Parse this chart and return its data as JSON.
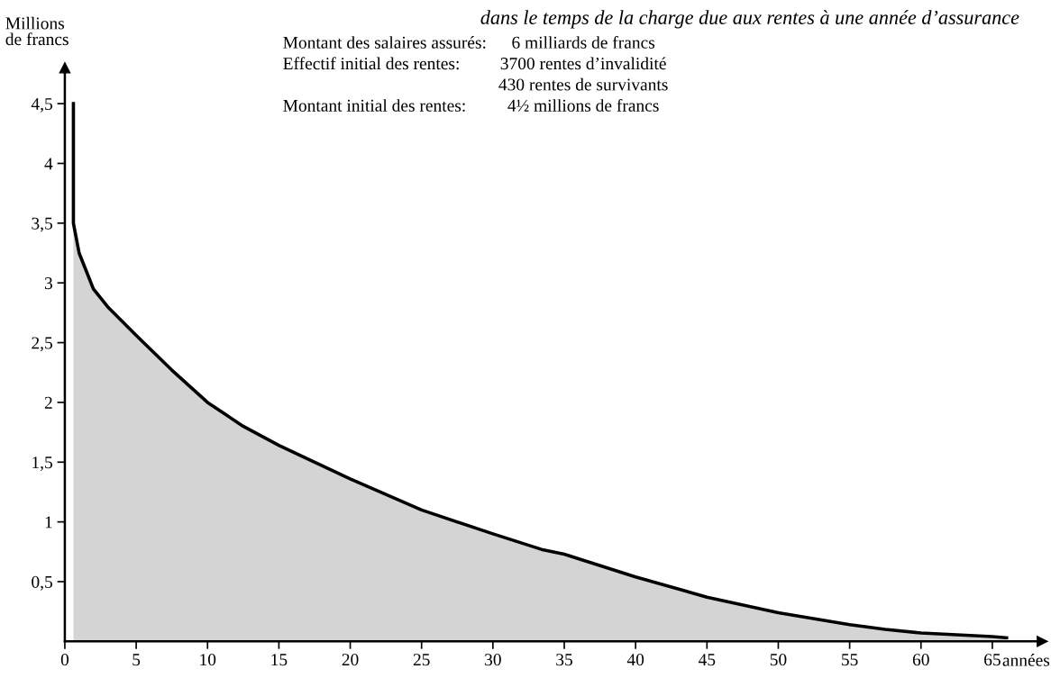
{
  "chart_data": {
    "type": "area",
    "title": "dans le temps de la charge due aux rentes à une année d’assurance",
    "ylabel": "Millions\nde francs",
    "xlabel": "années",
    "annotations": [
      "Montant des salaires assurés:",
      "6 milliards de francs",
      "Effectif initial des rentes:",
      "3700 rentes d’invalidité",
      "430 rentes de survivants",
      "Montant initial des rentes:",
      "4½ millions de francs"
    ],
    "series": [
      {
        "color": "#d4d4d4",
        "x": [
          0.6,
          0.6,
          1,
          2,
          3,
          5,
          7.5,
          10,
          12.5,
          15,
          20,
          25,
          30,
          33.4,
          35,
          40,
          45,
          50,
          55,
          57.5,
          60,
          65,
          66
        ],
        "values": [
          4.5,
          3.5,
          3.25,
          2.95,
          2.8,
          2.56,
          2.27,
          2.0,
          1.8,
          1.64,
          1.36,
          1.1,
          0.9,
          0.77,
          0.73,
          0.54,
          0.37,
          0.24,
          0.14,
          0.1,
          0.07,
          0.04,
          0.03
        ]
      }
    ],
    "xlim": [
      0,
      68.5
    ],
    "ylim": [
      0,
      4.8
    ],
    "xticks": [
      0,
      5,
      10,
      15,
      20,
      25,
      30,
      35,
      40,
      45,
      50,
      55,
      60,
      65
    ],
    "yticks": [
      {
        "value": 0.5,
        "label": "0,5"
      },
      1,
      {
        "value": 1.5,
        "label": "1,5"
      },
      2,
      {
        "value": 2.5,
        "label": "2,5"
      },
      3,
      {
        "value": 3.5,
        "label": "3,5"
      },
      4,
      {
        "value": 4.5,
        "label": "4,5"
      }
    ],
    "grid": false,
    "legend": false
  }
}
